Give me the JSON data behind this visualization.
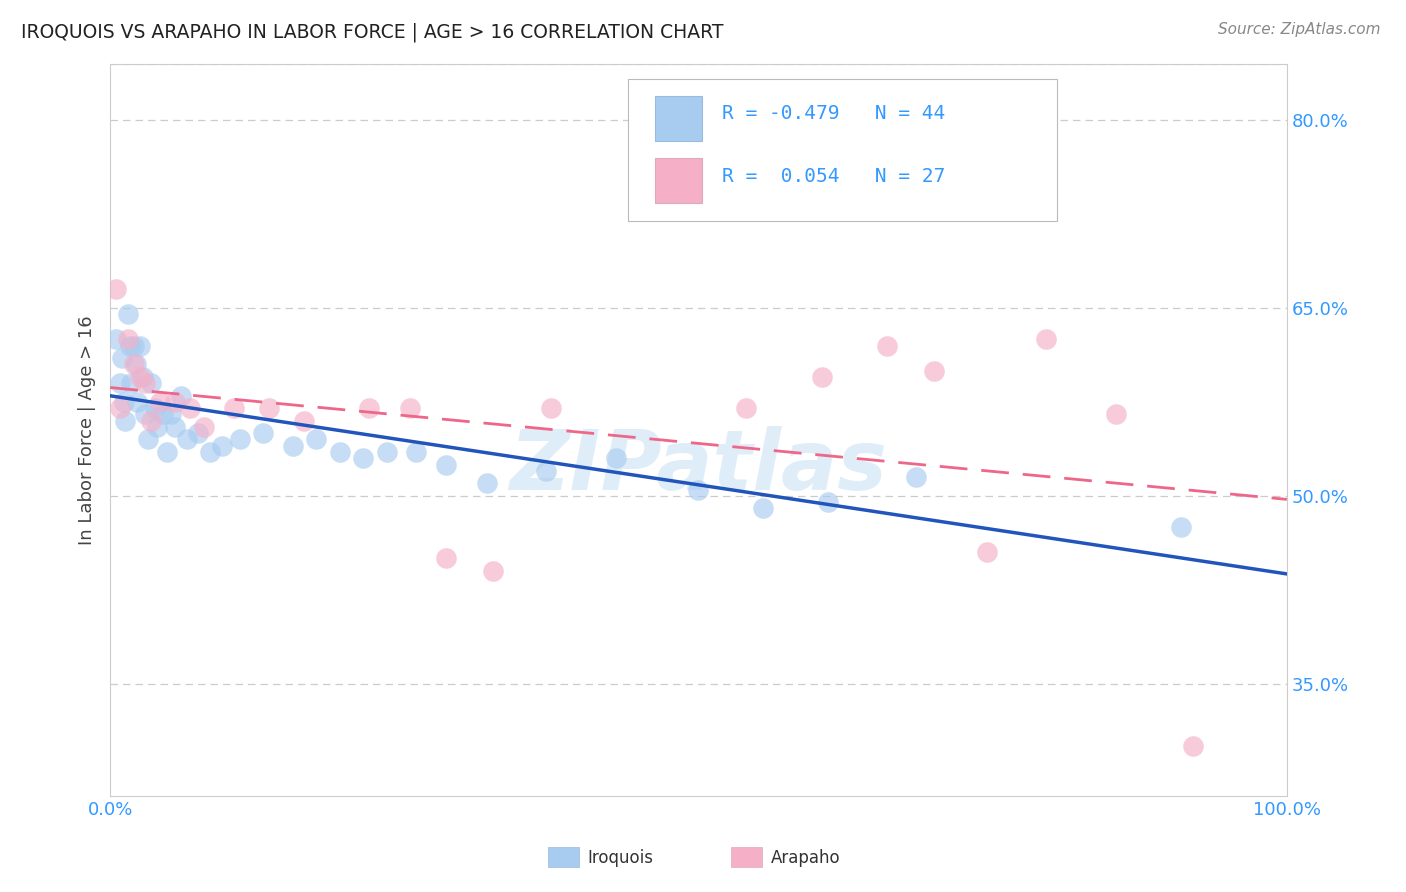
{
  "title": "IROQUOIS VS ARAPAHO IN LABOR FORCE | AGE > 16 CORRELATION CHART",
  "source": "Source: ZipAtlas.com",
  "ylabel": "In Labor Force | Age > 16",
  "xlim": [
    0.0,
    1.0
  ],
  "ylim": [
    0.26,
    0.845
  ],
  "yticks": [
    0.35,
    0.5,
    0.65,
    0.8
  ],
  "ytick_labels": [
    "35.0%",
    "50.0%",
    "65.0%",
    "80.0%"
  ],
  "xtick_vals": [
    0.0,
    0.1,
    0.2,
    0.3,
    0.4,
    0.5,
    0.6,
    0.7,
    0.8,
    0.9,
    1.0
  ],
  "xtick_labels": [
    "0.0%",
    "",
    "",
    "",
    "",
    "",
    "",
    "",
    "",
    "",
    "100.0%"
  ],
  "iroquois_color": "#A8CCF0",
  "arapaho_color": "#F5B0C8",
  "iroquois_line_color": "#2255BB",
  "arapaho_line_color": "#EE6688",
  "iroquois_R": -0.479,
  "iroquois_N": 44,
  "arapaho_R": 0.054,
  "arapaho_N": 27,
  "watermark": "ZIPatlas",
  "watermark_color": "#B8D8F0",
  "iroquois_x": [
    0.005,
    0.008,
    0.01,
    0.012,
    0.013,
    0.015,
    0.017,
    0.018,
    0.02,
    0.022,
    0.023,
    0.025,
    0.028,
    0.03,
    0.032,
    0.035,
    0.038,
    0.04,
    0.045,
    0.048,
    0.052,
    0.055,
    0.06,
    0.065,
    0.075,
    0.085,
    0.095,
    0.11,
    0.13,
    0.155,
    0.175,
    0.195,
    0.215,
    0.235,
    0.26,
    0.285,
    0.32,
    0.37,
    0.43,
    0.5,
    0.555,
    0.61,
    0.685,
    0.91
  ],
  "iroquois_y": [
    0.625,
    0.59,
    0.61,
    0.575,
    0.56,
    0.645,
    0.62,
    0.59,
    0.62,
    0.605,
    0.575,
    0.62,
    0.595,
    0.565,
    0.545,
    0.59,
    0.57,
    0.555,
    0.565,
    0.535,
    0.565,
    0.555,
    0.58,
    0.545,
    0.55,
    0.535,
    0.54,
    0.545,
    0.55,
    0.54,
    0.545,
    0.535,
    0.53,
    0.535,
    0.535,
    0.525,
    0.51,
    0.52,
    0.53,
    0.505,
    0.49,
    0.495,
    0.515,
    0.475
  ],
  "arapaho_x": [
    0.005,
    0.008,
    0.015,
    0.02,
    0.025,
    0.03,
    0.035,
    0.042,
    0.055,
    0.068,
    0.08,
    0.105,
    0.135,
    0.165,
    0.22,
    0.255,
    0.285,
    0.325,
    0.375,
    0.54,
    0.605,
    0.66,
    0.7,
    0.745,
    0.795,
    0.855,
    0.92
  ],
  "arapaho_y": [
    0.665,
    0.57,
    0.625,
    0.605,
    0.595,
    0.59,
    0.56,
    0.575,
    0.575,
    0.57,
    0.555,
    0.57,
    0.57,
    0.56,
    0.57,
    0.57,
    0.45,
    0.44,
    0.57,
    0.57,
    0.595,
    0.62,
    0.6,
    0.455,
    0.625,
    0.565,
    0.3
  ]
}
